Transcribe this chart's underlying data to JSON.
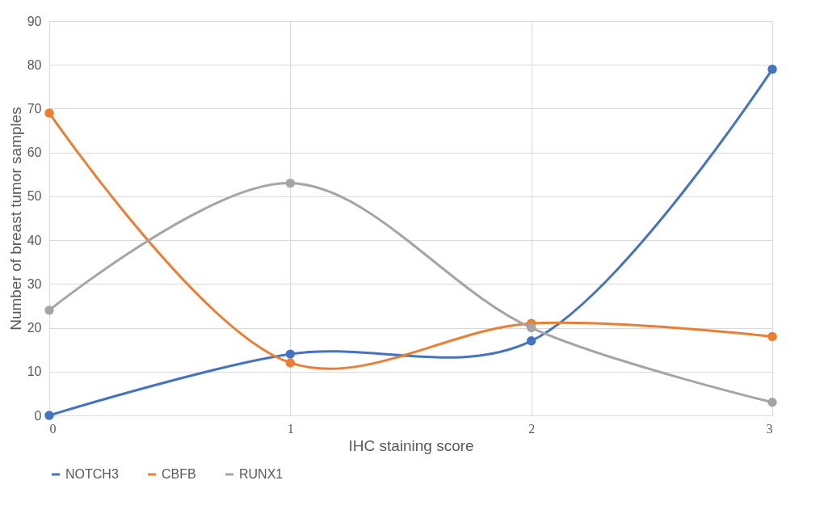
{
  "chart_data": {
    "type": "line",
    "xlabel": "IHC staining score",
    "ylabel": "Number of breast tumor samples",
    "x": [
      0,
      1,
      2,
      3
    ],
    "xlim": [
      0,
      3
    ],
    "xticks": [
      0,
      1,
      2,
      3
    ],
    "ylim": [
      0,
      90
    ],
    "yticks": [
      0,
      10,
      20,
      30,
      40,
      50,
      60,
      70,
      80,
      90
    ],
    "grid": true,
    "legend": "bottom",
    "marker": "circle",
    "line_style": "solid",
    "series": [
      {
        "name": "NOTCH3",
        "color": "#4472c4",
        "values": [
          0,
          14,
          17,
          79
        ]
      },
      {
        "name": "CBFB",
        "color": "#ed7d31",
        "values": [
          69,
          12,
          21,
          18
        ]
      },
      {
        "name": "RUNX1",
        "color": "#a5a5a5",
        "values": [
          24,
          53,
          20,
          3
        ]
      }
    ]
  }
}
